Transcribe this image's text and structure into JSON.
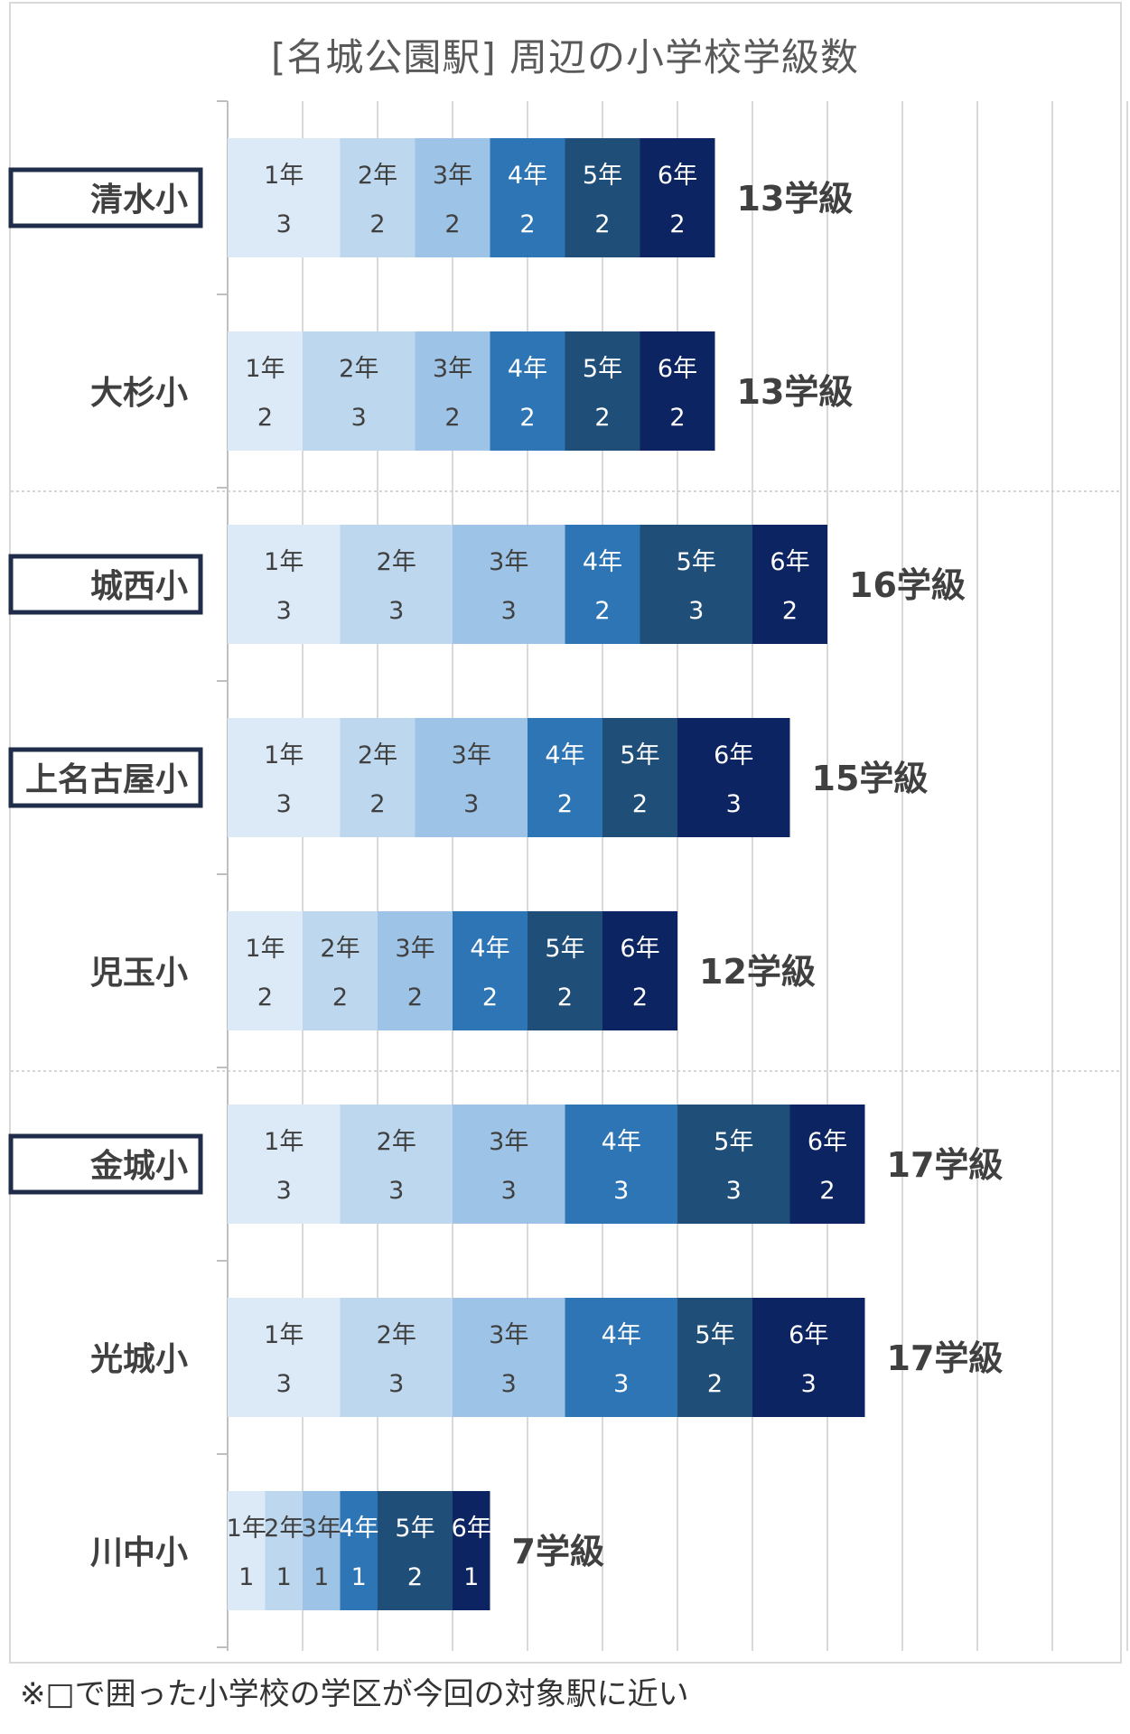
{
  "title": "[名城公園駅] 周辺の小学校学級数",
  "footnote": "※□で囲った小学校の学区が今回の対象駅に近い",
  "colors": [
    "#dce9f6",
    "#bdd7ee",
    "#9dc3e6",
    "#2e75b6",
    "#1f4e79",
    "#0c2461"
  ],
  "label_colors": [
    "#404040",
    "#404040",
    "#404040",
    "#ffffff",
    "#ffffff",
    "#ffffff"
  ],
  "chart_data": {
    "type": "bar",
    "orientation": "horizontal",
    "stacked": true,
    "title": "[名城公園駅] 周辺の小学校学級数",
    "categories": [
      "清水小",
      "大杉小",
      "城西小",
      "上名古屋小",
      "児玉小",
      "金城小",
      "光城小",
      "川中小"
    ],
    "highlighted": [
      "清水小",
      "城西小",
      "上名古屋小",
      "金城小"
    ],
    "series": [
      {
        "name": "1年",
        "values": [
          3,
          2,
          3,
          3,
          2,
          3,
          3,
          1
        ]
      },
      {
        "name": "2年",
        "values": [
          2,
          3,
          3,
          2,
          2,
          3,
          3,
          1
        ]
      },
      {
        "name": "3年",
        "values": [
          2,
          2,
          3,
          3,
          2,
          3,
          3,
          1
        ]
      },
      {
        "name": "4年",
        "values": [
          2,
          2,
          2,
          2,
          2,
          3,
          3,
          1
        ]
      },
      {
        "name": "5年",
        "values": [
          2,
          2,
          3,
          2,
          2,
          3,
          2,
          2
        ]
      },
      {
        "name": "6年",
        "values": [
          2,
          2,
          2,
          3,
          2,
          2,
          3,
          1
        ]
      }
    ],
    "totals": [
      "13学級",
      "13学級",
      "16学級",
      "15学級",
      "12学級",
      "17学級",
      "17学級",
      "7学級"
    ],
    "xlim": [
      0,
      24
    ],
    "grid": true,
    "group_dividers_after": [
      "大杉小",
      "児玉小"
    ]
  }
}
